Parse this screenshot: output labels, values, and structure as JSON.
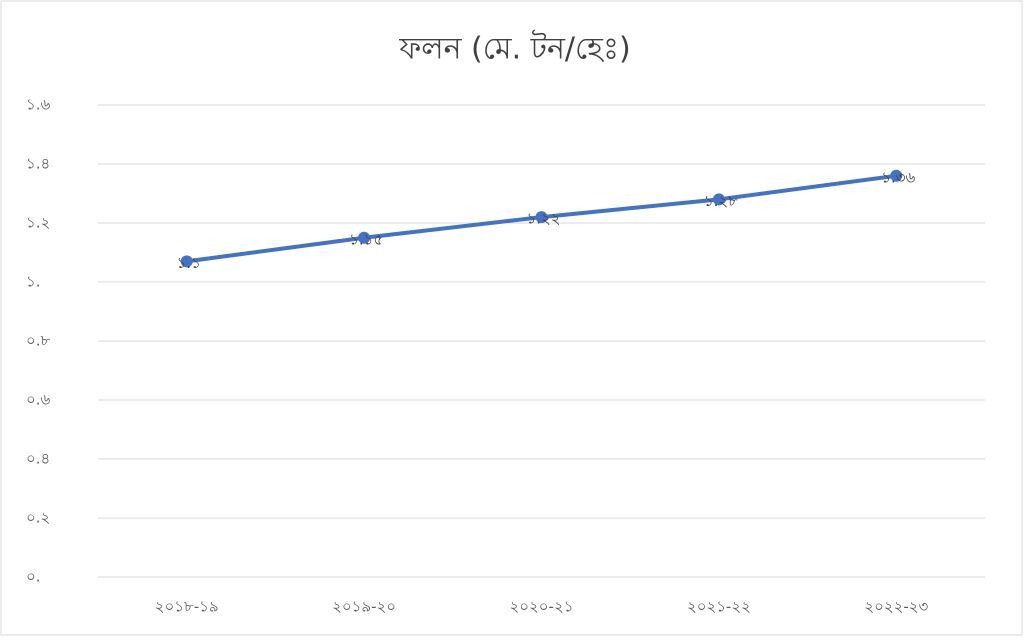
{
  "chart_data": {
    "type": "line",
    "title": "ফলন (মে. টন/হেঃ)",
    "categories": [
      "২০১৮-১৯",
      "২০১৯-২০",
      "২০২০-২১",
      "২০২১-২২",
      "২০২২-২৩"
    ],
    "series": [
      {
        "name": "ফলন",
        "color": "#4472c4",
        "values": [
          1.07,
          1.15,
          1.22,
          1.28,
          1.36
        ],
        "value_labels": [
          "১.১",
          "১.১৫",
          "১.২২",
          "১.২৮",
          "১.৩৬"
        ]
      }
    ],
    "ylim": [
      0,
      1.6
    ],
    "yticks": [
      {
        "value": 0,
        "label": "০."
      },
      {
        "value": 0.2,
        "label": "০.২"
      },
      {
        "value": 0.4,
        "label": "০.৪"
      },
      {
        "value": 0.6,
        "label": "০.৬"
      },
      {
        "value": 0.8,
        "label": "০.৮"
      },
      {
        "value": 1,
        "label": "১."
      },
      {
        "value": 1.2,
        "label": "১.২"
      },
      {
        "value": 1.4,
        "label": "১.৪"
      },
      {
        "value": 1.6,
        "label": "১.৬"
      }
    ],
    "grid": true
  }
}
